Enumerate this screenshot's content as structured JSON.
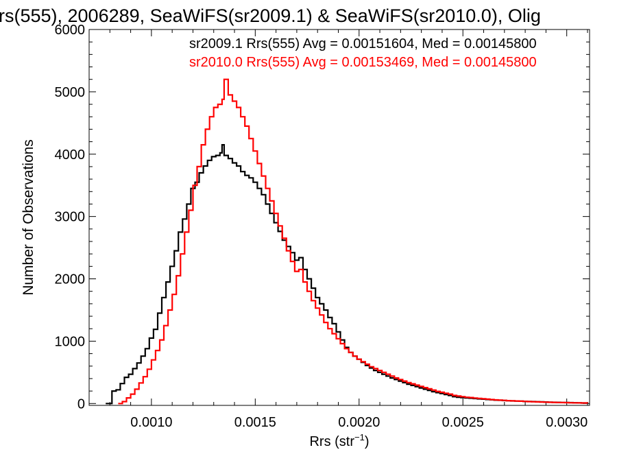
{
  "chart_data": {
    "type": "line",
    "title": "rs(555), 2006289, SeaWiFS(sr2009.1) & SeaWiFS(sr2010.0), Olig",
    "xlabel_main": "Rrs (str",
    "xlabel_sup": "−1",
    "xlabel_close": ")",
    "ylabel": "Number of Observations",
    "xlim": [
      0.0007,
      0.00311
    ],
    "ylim": [
      -30,
      6000
    ],
    "x_ticks": [
      0.001,
      0.0015,
      0.002,
      0.0025,
      0.003
    ],
    "x_tick_labels": [
      "0.0010",
      "0.0015",
      "0.0020",
      "0.0025",
      "0.0030"
    ],
    "y_ticks": [
      0,
      1000,
      2000,
      3000,
      4000,
      5000,
      6000
    ],
    "y_tick_labels": [
      "0",
      "1000",
      "2000",
      "3000",
      "4000",
      "5000",
      "6000"
    ],
    "grid": false,
    "legend_position": "top-right",
    "annotations": [
      {
        "text": "sr2009.1 Rrs(555) Avg = 0.00151604, Med = 0.00145800",
        "color": "#000000"
      },
      {
        "text": "sr2010.0 Rrs(555) Avg = 0.00153469, Med = 0.00145800",
        "color": "#ff0000"
      }
    ],
    "series": [
      {
        "name": "sr2009.1",
        "color": "#000000",
        "points": [
          [
            0.00078,
            0
          ],
          [
            0.0008,
            0
          ],
          [
            0.00081,
            200
          ],
          [
            0.00083,
            220
          ],
          [
            0.00085,
            320
          ],
          [
            0.00087,
            420
          ],
          [
            0.00089,
            470
          ],
          [
            0.00091,
            560
          ],
          [
            0.00093,
            650
          ],
          [
            0.00095,
            760
          ],
          [
            0.00097,
            880
          ],
          [
            0.00099,
            1050
          ],
          [
            0.00101,
            1190
          ],
          [
            0.00103,
            1450
          ],
          [
            0.00105,
            1700
          ],
          [
            0.00107,
            1950
          ],
          [
            0.00109,
            2200
          ],
          [
            0.00111,
            2450
          ],
          [
            0.00113,
            2750
          ],
          [
            0.00115,
            2960
          ],
          [
            0.00117,
            3200
          ],
          [
            0.00119,
            3450
          ],
          [
            0.00121,
            3550
          ],
          [
            0.00123,
            3700
          ],
          [
            0.00125,
            3810
          ],
          [
            0.00127,
            3900
          ],
          [
            0.00129,
            3960
          ],
          [
            0.00131,
            3980
          ],
          [
            0.00133,
            4020
          ],
          [
            0.00134,
            4150
          ],
          [
            0.00135,
            3980
          ],
          [
            0.00137,
            3930
          ],
          [
            0.00139,
            3860
          ],
          [
            0.00141,
            3810
          ],
          [
            0.00143,
            3720
          ],
          [
            0.00145,
            3660
          ],
          [
            0.00147,
            3620
          ],
          [
            0.00149,
            3550
          ],
          [
            0.00151,
            3450
          ],
          [
            0.00153,
            3350
          ],
          [
            0.00155,
            3200
          ],
          [
            0.00157,
            3050
          ],
          [
            0.00159,
            2900
          ],
          [
            0.00161,
            2760
          ],
          [
            0.00163,
            2620
          ],
          [
            0.00165,
            2520
          ],
          [
            0.00167,
            2420
          ],
          [
            0.00169,
            2300
          ],
          [
            0.00171,
            2340
          ],
          [
            0.00173,
            2150
          ],
          [
            0.00175,
            2000
          ],
          [
            0.00177,
            1850
          ],
          [
            0.00179,
            1700
          ],
          [
            0.00181,
            1600
          ],
          [
            0.00183,
            1500
          ],
          [
            0.00185,
            1380
          ],
          [
            0.00187,
            1280
          ],
          [
            0.00189,
            1150
          ],
          [
            0.00191,
            1020
          ],
          [
            0.00193,
            900
          ],
          [
            0.00195,
            820
          ],
          [
            0.00197,
            760
          ],
          [
            0.00199,
            710
          ],
          [
            0.00201,
            660
          ],
          [
            0.00203,
            610
          ],
          [
            0.00205,
            570
          ],
          [
            0.00207,
            530
          ],
          [
            0.00209,
            500
          ],
          [
            0.00211,
            470
          ],
          [
            0.00213,
            440
          ],
          [
            0.00215,
            410
          ],
          [
            0.00217,
            385
          ],
          [
            0.00219,
            360
          ],
          [
            0.00221,
            335
          ],
          [
            0.00223,
            310
          ],
          [
            0.00225,
            290
          ],
          [
            0.00227,
            270
          ],
          [
            0.00229,
            250
          ],
          [
            0.00231,
            230
          ],
          [
            0.00233,
            210
          ],
          [
            0.00235,
            190
          ],
          [
            0.00237,
            175
          ],
          [
            0.00239,
            160
          ],
          [
            0.00241,
            145
          ],
          [
            0.00243,
            130
          ],
          [
            0.00245,
            110
          ],
          [
            0.00247,
            100
          ],
          [
            0.00249,
            95
          ],
          [
            0.00251,
            90
          ],
          [
            0.00253,
            85
          ],
          [
            0.00255,
            80
          ],
          [
            0.00257,
            75
          ],
          [
            0.00259,
            70
          ],
          [
            0.00261,
            65
          ],
          [
            0.00263,
            60
          ],
          [
            0.00265,
            55
          ],
          [
            0.00267,
            52
          ],
          [
            0.00269,
            48
          ],
          [
            0.00271,
            45
          ],
          [
            0.00273,
            42
          ],
          [
            0.00275,
            40
          ],
          [
            0.00277,
            38
          ],
          [
            0.00279,
            35
          ],
          [
            0.00281,
            32
          ],
          [
            0.00283,
            30
          ],
          [
            0.00285,
            28
          ],
          [
            0.00287,
            26
          ],
          [
            0.00289,
            24
          ],
          [
            0.00291,
            22
          ],
          [
            0.00293,
            20
          ],
          [
            0.00295,
            18
          ],
          [
            0.00297,
            16
          ],
          [
            0.00299,
            15
          ],
          [
            0.00301,
            14
          ],
          [
            0.00303,
            12
          ],
          [
            0.00305,
            10
          ],
          [
            0.00307,
            9
          ],
          [
            0.00309,
            8
          ],
          [
            0.0031,
            7
          ]
        ]
      },
      {
        "name": "sr2010.0",
        "color": "#ff0000",
        "points": [
          [
            0.00084,
            0
          ],
          [
            0.00086,
            30
          ],
          [
            0.00088,
            90
          ],
          [
            0.0009,
            150
          ],
          [
            0.00092,
            230
          ],
          [
            0.00094,
            330
          ],
          [
            0.00096,
            430
          ],
          [
            0.00098,
            550
          ],
          [
            0.001,
            700
          ],
          [
            0.00102,
            850
          ],
          [
            0.00104,
            1020
          ],
          [
            0.00106,
            1250
          ],
          [
            0.00108,
            1500
          ],
          [
            0.0011,
            1750
          ],
          [
            0.00112,
            2050
          ],
          [
            0.00114,
            2400
          ],
          [
            0.00116,
            2750
          ],
          [
            0.00118,
            3100
          ],
          [
            0.0012,
            3500
          ],
          [
            0.00122,
            3800
          ],
          [
            0.00124,
            4150
          ],
          [
            0.00126,
            4400
          ],
          [
            0.00128,
            4600
          ],
          [
            0.0013,
            4750
          ],
          [
            0.00132,
            4800
          ],
          [
            0.00134,
            4880
          ],
          [
            0.00135,
            5200
          ],
          [
            0.00137,
            4950
          ],
          [
            0.00139,
            4850
          ],
          [
            0.00141,
            4750
          ],
          [
            0.00143,
            4600
          ],
          [
            0.00145,
            4450
          ],
          [
            0.00147,
            4250
          ],
          [
            0.00149,
            4050
          ],
          [
            0.00151,
            3850
          ],
          [
            0.00153,
            3650
          ],
          [
            0.00155,
            3450
          ],
          [
            0.00157,
            3250
          ],
          [
            0.00159,
            3050
          ],
          [
            0.00161,
            2850
          ],
          [
            0.00163,
            2650
          ],
          [
            0.00165,
            2450
          ],
          [
            0.00167,
            2280
          ],
          [
            0.00169,
            2120
          ],
          [
            0.00171,
            2150
          ],
          [
            0.00173,
            1950
          ],
          [
            0.00175,
            1800
          ],
          [
            0.00177,
            1650
          ],
          [
            0.00179,
            1530
          ],
          [
            0.00181,
            1420
          ],
          [
            0.00183,
            1300
          ],
          [
            0.00185,
            1200
          ],
          [
            0.00187,
            1120
          ],
          [
            0.00189,
            1040
          ],
          [
            0.00191,
            960
          ],
          [
            0.00193,
            880
          ],
          [
            0.00195,
            820
          ],
          [
            0.00197,
            760
          ],
          [
            0.00199,
            710
          ],
          [
            0.00201,
            670
          ],
          [
            0.00203,
            630
          ],
          [
            0.00205,
            590
          ],
          [
            0.00207,
            560
          ],
          [
            0.00209,
            530
          ],
          [
            0.00211,
            500
          ],
          [
            0.00213,
            470
          ],
          [
            0.00215,
            440
          ],
          [
            0.00217,
            410
          ],
          [
            0.00219,
            385
          ],
          [
            0.00221,
            360
          ],
          [
            0.00223,
            335
          ],
          [
            0.00225,
            315
          ],
          [
            0.00227,
            295
          ],
          [
            0.00229,
            275
          ],
          [
            0.00231,
            255
          ],
          [
            0.00233,
            235
          ],
          [
            0.00235,
            215
          ],
          [
            0.00237,
            195
          ],
          [
            0.00239,
            180
          ],
          [
            0.00241,
            165
          ],
          [
            0.00243,
            150
          ],
          [
            0.00245,
            130
          ],
          [
            0.00247,
            120
          ],
          [
            0.00249,
            110
          ],
          [
            0.00251,
            100
          ],
          [
            0.00253,
            95
          ],
          [
            0.00255,
            88
          ],
          [
            0.00257,
            82
          ],
          [
            0.00259,
            76
          ],
          [
            0.00261,
            70
          ],
          [
            0.00263,
            64
          ],
          [
            0.00265,
            58
          ],
          [
            0.00267,
            54
          ],
          [
            0.00269,
            50
          ],
          [
            0.00271,
            46
          ],
          [
            0.00273,
            43
          ],
          [
            0.00275,
            40
          ],
          [
            0.00277,
            37
          ],
          [
            0.00279,
            34
          ],
          [
            0.00281,
            31
          ],
          [
            0.00283,
            28
          ],
          [
            0.00285,
            26
          ],
          [
            0.00287,
            24
          ],
          [
            0.00289,
            22
          ],
          [
            0.00291,
            20
          ],
          [
            0.00293,
            18
          ],
          [
            0.00295,
            16
          ],
          [
            0.00297,
            15
          ],
          [
            0.00299,
            14
          ],
          [
            0.00301,
            12
          ],
          [
            0.00303,
            11
          ],
          [
            0.00305,
            10
          ],
          [
            0.00307,
            9
          ],
          [
            0.00309,
            8
          ],
          [
            0.0031,
            7
          ]
        ]
      }
    ]
  }
}
